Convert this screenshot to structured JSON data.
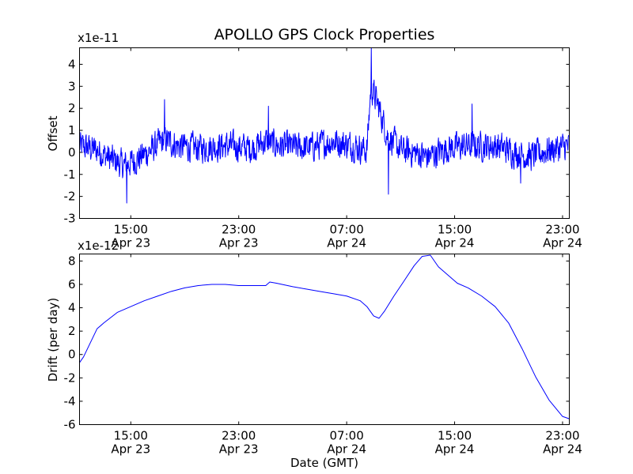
{
  "chart_data": [
    {
      "type": "line",
      "title": "APOLLO GPS Clock Properties",
      "ylabel": "Offset",
      "xlabel": "",
      "scale_note": "x1e-11",
      "ylim": [
        -3,
        4.75
      ],
      "yticks": [
        -3,
        -2,
        -1,
        0,
        1,
        2,
        3,
        4
      ],
      "xlim_hours": [
        11.2,
        47.5
      ],
      "xticks": [
        {
          "hour": 15,
          "time": "15:00",
          "date": "Apr 23"
        },
        {
          "hour": 23,
          "time": "23:00",
          "date": "Apr 23"
        },
        {
          "hour": 31,
          "time": "07:00",
          "date": "Apr 24"
        },
        {
          "hour": 39,
          "time": "15:00",
          "date": "Apr 24"
        },
        {
          "hour": 47,
          "time": "23:00",
          "date": "Apr 24"
        }
      ],
      "color": "#0000ff",
      "grid": false,
      "series_envelope": {
        "x_hours": [
          11.2,
          12.5,
          13.5,
          14.5,
          15.5,
          16.5,
          17.5,
          18.5,
          20,
          22,
          24,
          25,
          26,
          28,
          30,
          31.5,
          32.5,
          32.8,
          33.3,
          34,
          35,
          36,
          37,
          38.5,
          40,
          42,
          43.5,
          44.5,
          46,
          47.5
        ],
        "y_mean": [
          0.3,
          0.1,
          -0.3,
          -0.6,
          -0.3,
          0.1,
          0.6,
          0.3,
          0.2,
          0.3,
          0.2,
          0.5,
          0.3,
          0.2,
          0.5,
          0.3,
          0.1,
          3.0,
          2.2,
          0.8,
          0.1,
          0.0,
          -0.2,
          0.2,
          0.3,
          0.3,
          0.0,
          -0.2,
          0.1,
          0.3
        ],
        "amplitude": 0.9,
        "spikes": [
          {
            "x_hours": 32.82,
            "y": 4.8
          },
          {
            "x_hours": 17.5,
            "y": 2.4
          },
          {
            "x_hours": 25.2,
            "y": 2.1
          },
          {
            "x_hours": 40.3,
            "y": 2.2
          },
          {
            "x_hours": 14.7,
            "y": -2.3
          },
          {
            "x_hours": 34.1,
            "y": -1.9
          },
          {
            "x_hours": 43.9,
            "y": -1.4
          }
        ]
      }
    },
    {
      "type": "line",
      "title": "",
      "ylabel": "Drift (per day)",
      "xlabel": "Date (GMT)",
      "scale_note": "x1e-12",
      "ylim": [
        -6,
        8.6
      ],
      "yticks": [
        -6,
        -4,
        -2,
        0,
        2,
        4,
        6,
        8
      ],
      "xlim_hours": [
        11.2,
        47.5
      ],
      "xticks": [
        {
          "hour": 15,
          "time": "15:00",
          "date": "Apr 23"
        },
        {
          "hour": 23,
          "time": "23:00",
          "date": "Apr 23"
        },
        {
          "hour": 31,
          "time": "07:00",
          "date": "Apr 24"
        },
        {
          "hour": 39,
          "time": "15:00",
          "date": "Apr 24"
        },
        {
          "hour": 47,
          "time": "23:00",
          "date": "Apr 24"
        }
      ],
      "color": "#0000ff",
      "grid": false,
      "series": [
        {
          "x": [
            11.2,
            11.5,
            12.0,
            12.5,
            13.0,
            14.0,
            15.0,
            16.0,
            17.0,
            18.0,
            19.0,
            20.0,
            21.0,
            22.0,
            23.0,
            24.0,
            25.0,
            25.3,
            25.8,
            27.0,
            28.0,
            29.0,
            30.0,
            31.0,
            32.0,
            32.5,
            33.0,
            33.4,
            33.8,
            34.5,
            35.2,
            36.0,
            36.6,
            37.2,
            37.8,
            38.5,
            39.2,
            40.0,
            41.0,
            42.0,
            43.0,
            44.0,
            45.0,
            46.0,
            47.0,
            47.5
          ],
          "y": [
            -0.7,
            -0.2,
            1.0,
            2.2,
            2.7,
            3.6,
            4.1,
            4.6,
            5.0,
            5.4,
            5.7,
            5.9,
            6.0,
            6.0,
            5.9,
            5.9,
            5.9,
            6.2,
            6.1,
            5.8,
            5.6,
            5.4,
            5.2,
            5.0,
            4.6,
            4.1,
            3.3,
            3.1,
            3.7,
            5.0,
            6.2,
            7.6,
            8.4,
            8.5,
            7.5,
            6.8,
            6.1,
            5.7,
            5.0,
            4.1,
            2.7,
            0.5,
            -1.9,
            -3.9,
            -5.3,
            -5.5
          ]
        }
      ]
    }
  ]
}
